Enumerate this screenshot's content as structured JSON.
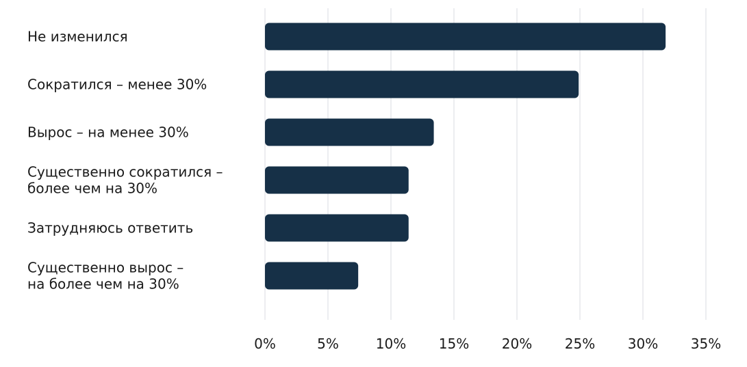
{
  "chart_data": {
    "type": "bar",
    "orientation": "horizontal",
    "title": "",
    "xlabel": "",
    "ylabel": "",
    "categories": [
      [
        "Не изменился"
      ],
      [
        "Сократился – менее 30%"
      ],
      [
        "Вырос – на менее 30%"
      ],
      [
        "Существенно сократился –",
        "более чем на 30%"
      ],
      [
        "Затрудняюсь ответить"
      ],
      [
        "Существенно вырос –",
        "на более чем на 30%"
      ]
    ],
    "values": [
      31.8,
      24.9,
      13.4,
      11.4,
      11.4,
      7.4
    ],
    "xlim": [
      0,
      35
    ],
    "xticks": [
      0,
      5,
      10,
      15,
      20,
      25,
      30,
      35
    ],
    "xtick_labels": [
      "0%",
      "5%",
      "10%",
      "15%",
      "20%",
      "25%",
      "30%",
      "35%"
    ],
    "grid": true,
    "bar_color": "#163047",
    "grid_color": "#d9dbe2"
  }
}
